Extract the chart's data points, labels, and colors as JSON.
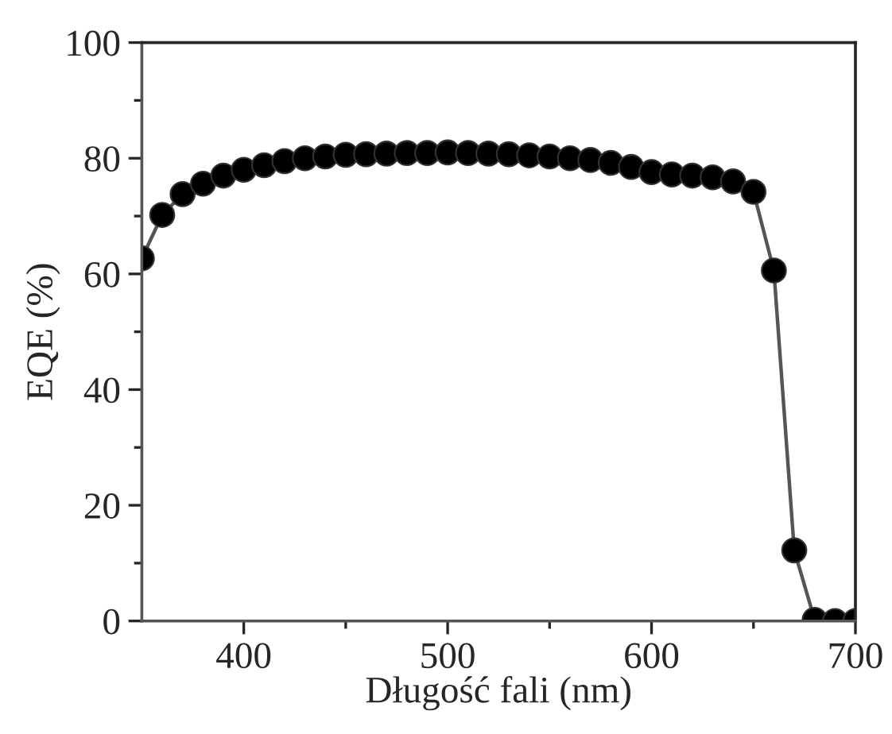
{
  "chart_data": {
    "type": "line",
    "xlabel": "Długość fali (nm)",
    "ylabel": "EQE (%)",
    "x": [
      350,
      360,
      370,
      380,
      390,
      400,
      410,
      420,
      430,
      440,
      450,
      460,
      470,
      480,
      490,
      500,
      510,
      520,
      530,
      540,
      550,
      560,
      570,
      580,
      590,
      600,
      610,
      620,
      630,
      640,
      650,
      660,
      670,
      680,
      690,
      700
    ],
    "series": [
      {
        "color": "#000000",
        "values": [
          62.7,
          70.2,
          73.8,
          75.6,
          77,
          78,
          78.8,
          79.5,
          80,
          80.3,
          80.6,
          80.7,
          80.8,
          80.9,
          80.9,
          81,
          80.9,
          80.8,
          80.7,
          80.5,
          80.3,
          80,
          79.7,
          79.2,
          78.5,
          77.6,
          77.2,
          77,
          76.7,
          76,
          74.2,
          60.6,
          12.2,
          0.2,
          0,
          0
        ]
      }
    ],
    "xlim": [
      350,
      700
    ],
    "ylim": [
      0,
      100
    ],
    "xticks": [
      400,
      {
        "value": 450,
        "label": null
      },
      500,
      {
        "value": 550,
        "label": null
      },
      600,
      {
        "value": 650,
        "label": null
      },
      700
    ],
    "yticks": [
      0,
      {
        "value": 10,
        "label": null
      },
      20,
      {
        "value": 30,
        "label": null
      },
      40,
      {
        "value": 50,
        "label": null
      },
      60,
      {
        "value": 70,
        "label": null
      },
      80,
      {
        "value": 90,
        "label": null
      },
      100
    ],
    "marker": "circle",
    "line_style": "solid",
    "grid": false,
    "legend": false
  }
}
